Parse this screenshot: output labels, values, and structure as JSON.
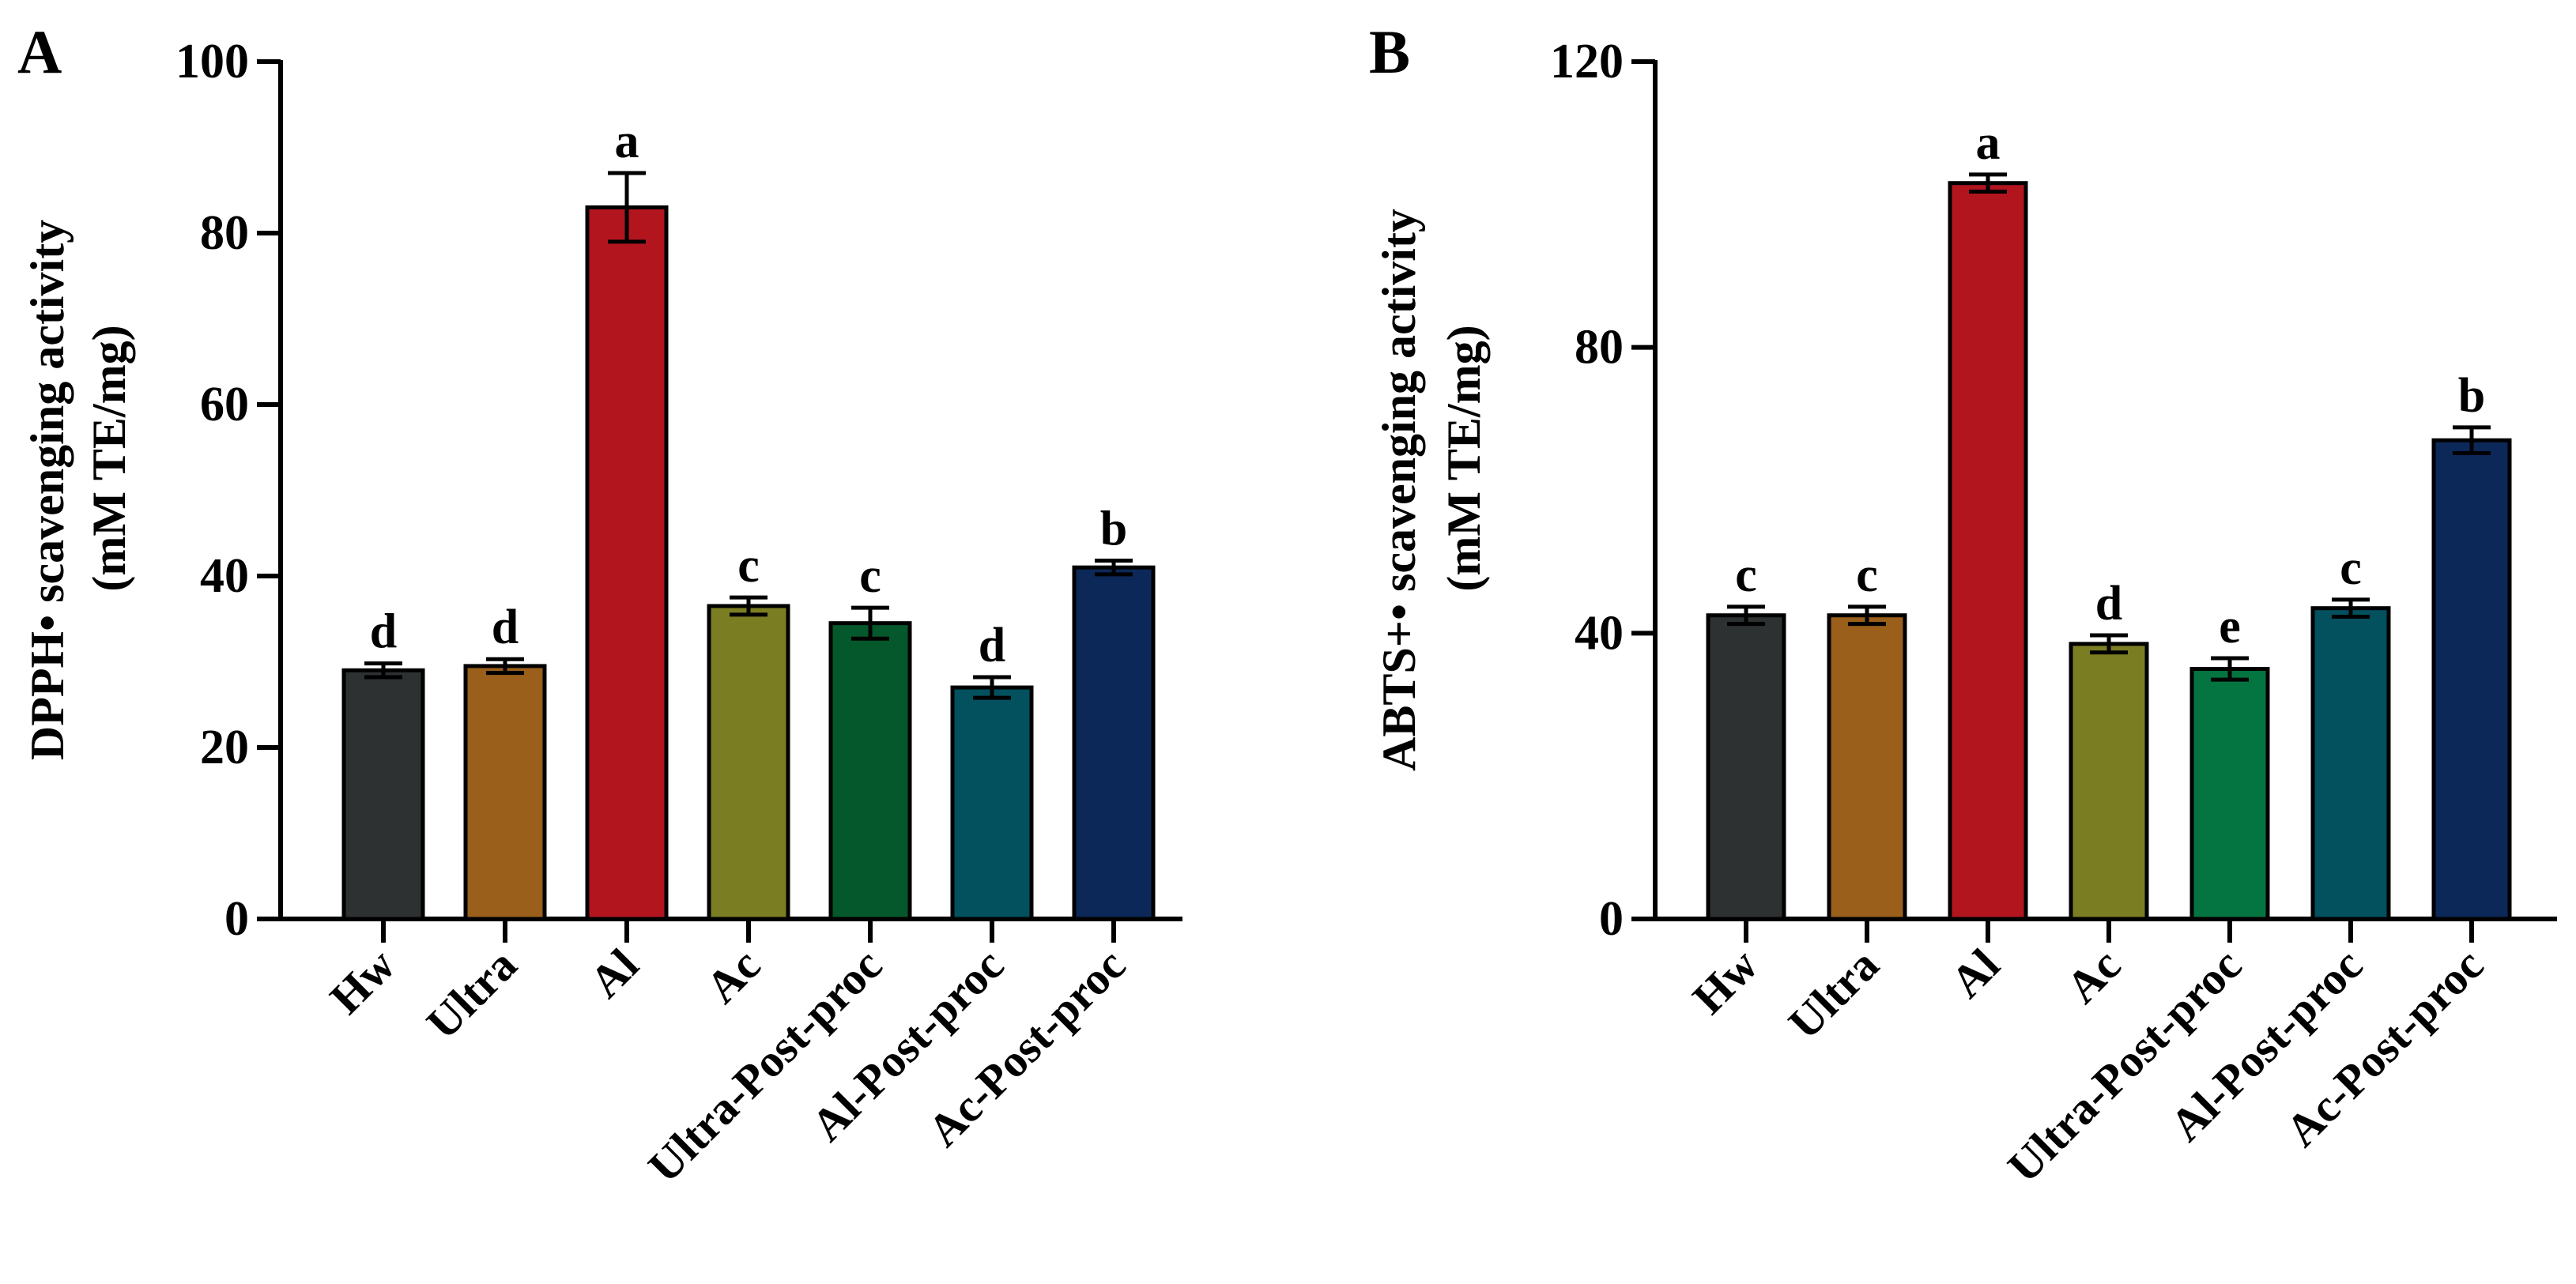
{
  "chart_data": [
    {
      "panel_label": "A",
      "type": "bar",
      "categories": [
        "Hw",
        "Ultra",
        "Al",
        "Ac",
        "Ultra-Post-proc",
        "Al-Post-proc",
        "Ac-Post-proc"
      ],
      "values": [
        29,
        29.5,
        83,
        36.5,
        34.5,
        27,
        41
      ],
      "errors": [
        0.8,
        0.8,
        4,
        1,
        1.8,
        1.2,
        0.8
      ],
      "significance": [
        "d",
        "d",
        "a",
        "c",
        "c",
        "d",
        "b"
      ],
      "colors": [
        "#2d3132",
        "#9a5f1b",
        "#b3151f",
        "#7b7d22",
        "#05582b",
        "#03505f",
        "#0c2858"
      ],
      "ylabel_line1": "DPPH• scavenging activity",
      "ylabel_line2": "(mM TE/mg)",
      "xlabel": "",
      "ylim": [
        0,
        100
      ],
      "yticks": [
        0,
        20,
        40,
        60,
        80,
        100
      ],
      "grid": false,
      "legend": false
    },
    {
      "panel_label": "B",
      "type": "bar",
      "categories": [
        "Hw",
        "Ultra",
        "Al",
        "Ac",
        "Ultra-Post-proc",
        "Al-Post-proc",
        "Ac-Post-proc"
      ],
      "values": [
        42.5,
        42.5,
        103,
        38.5,
        35,
        43.5,
        67
      ],
      "errors": [
        1.2,
        1.2,
        1.2,
        1.2,
        1.5,
        1.2,
        1.8
      ],
      "significance": [
        "c",
        "c",
        "a",
        "d",
        "e",
        "c",
        "b"
      ],
      "colors": [
        "#2d3132",
        "#9a5f1b",
        "#b3151f",
        "#7b7d22",
        "#047440",
        "#03505f",
        "#0c2858"
      ],
      "ylabel_line1": "ABTS+• scavenging activity",
      "ylabel_line2": "(mM TE/mg)",
      "xlabel": "",
      "ylim": [
        0,
        120
      ],
      "yticks": [
        0,
        40,
        80,
        120
      ],
      "grid": false,
      "legend": false
    }
  ]
}
